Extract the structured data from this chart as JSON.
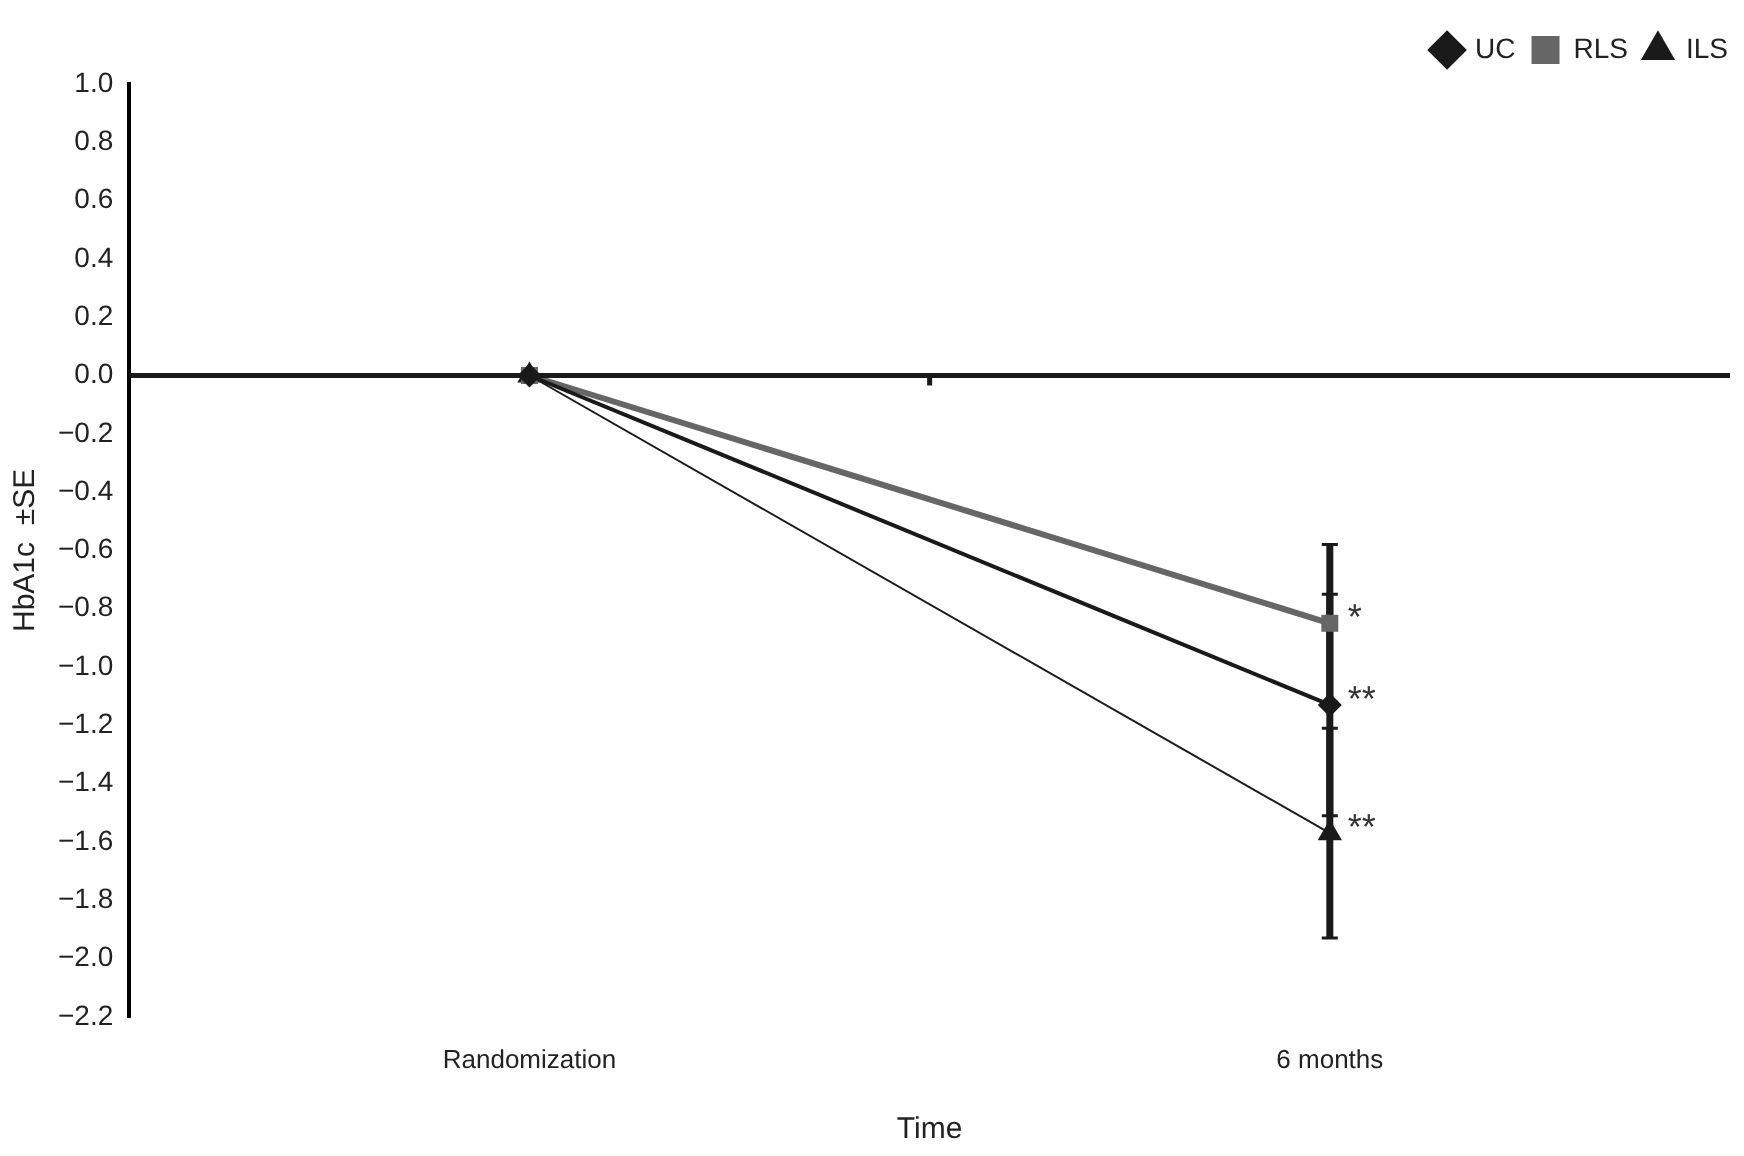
{
  "chart_data": {
    "type": "line",
    "xlabel": "Time",
    "ylabel": "HbA1c  ±SE",
    "categories": [
      "Randomization",
      "6 months"
    ],
    "series": [
      {
        "name": "UC",
        "color": "#1a1a1a",
        "marker": "diamond",
        "values": [
          0,
          -1.13
        ],
        "errors": [
          null,
          0.38
        ]
      },
      {
        "name": "RLS",
        "color": "#666666",
        "marker": "square",
        "values": [
          0,
          -0.85
        ],
        "errors": [
          null,
          0.27
        ]
      },
      {
        "name": "ILS",
        "color": "#1a1a1a",
        "marker": "triangle",
        "values": [
          0,
          -1.57
        ],
        "errors": [
          null,
          0.36
        ]
      }
    ],
    "ylim": [
      -2.2,
      1.0
    ],
    "yticks": [
      {
        "value": 1.0,
        "label": "1.0"
      },
      {
        "value": 0.8,
        "label": "0.8"
      },
      {
        "value": 0.6,
        "label": "0.6"
      },
      {
        "value": 0.4,
        "label": "0.4"
      },
      {
        "value": 0.2,
        "label": "0.2"
      },
      {
        "value": 0,
        "label": "0.0"
      },
      {
        "value": -0.2,
        "label": "−0.2"
      },
      {
        "value": -0.4,
        "label": "−0.4"
      },
      {
        "value": -0.6,
        "label": "−0.6"
      },
      {
        "value": -0.8,
        "label": "−0.8"
      },
      {
        "value": -1.0,
        "label": "−1.0"
      },
      {
        "value": -1.2,
        "label": "−1.2"
      },
      {
        "value": -1.4,
        "label": "−1.4"
      },
      {
        "value": -1.6,
        "label": "−1.6"
      },
      {
        "value": -1.8,
        "label": "−1.8"
      },
      {
        "value": -2.0,
        "label": "−2.0"
      },
      {
        "value": -2.2,
        "label": "−2.2"
      }
    ],
    "ref_lines": [
      {
        "axis": "y",
        "value": 0,
        "color": "#1a1a1a",
        "line_style": "solid"
      }
    ],
    "annotations": [
      {
        "text": "*",
        "x": "6 months",
        "y": -0.85
      },
      {
        "text": "**",
        "x": "6 months",
        "y": -1.13
      },
      {
        "text": "**",
        "x": "6 months",
        "y": -1.57
      }
    ],
    "legend": "top right",
    "grid": false,
    "line_style": "solid"
  }
}
